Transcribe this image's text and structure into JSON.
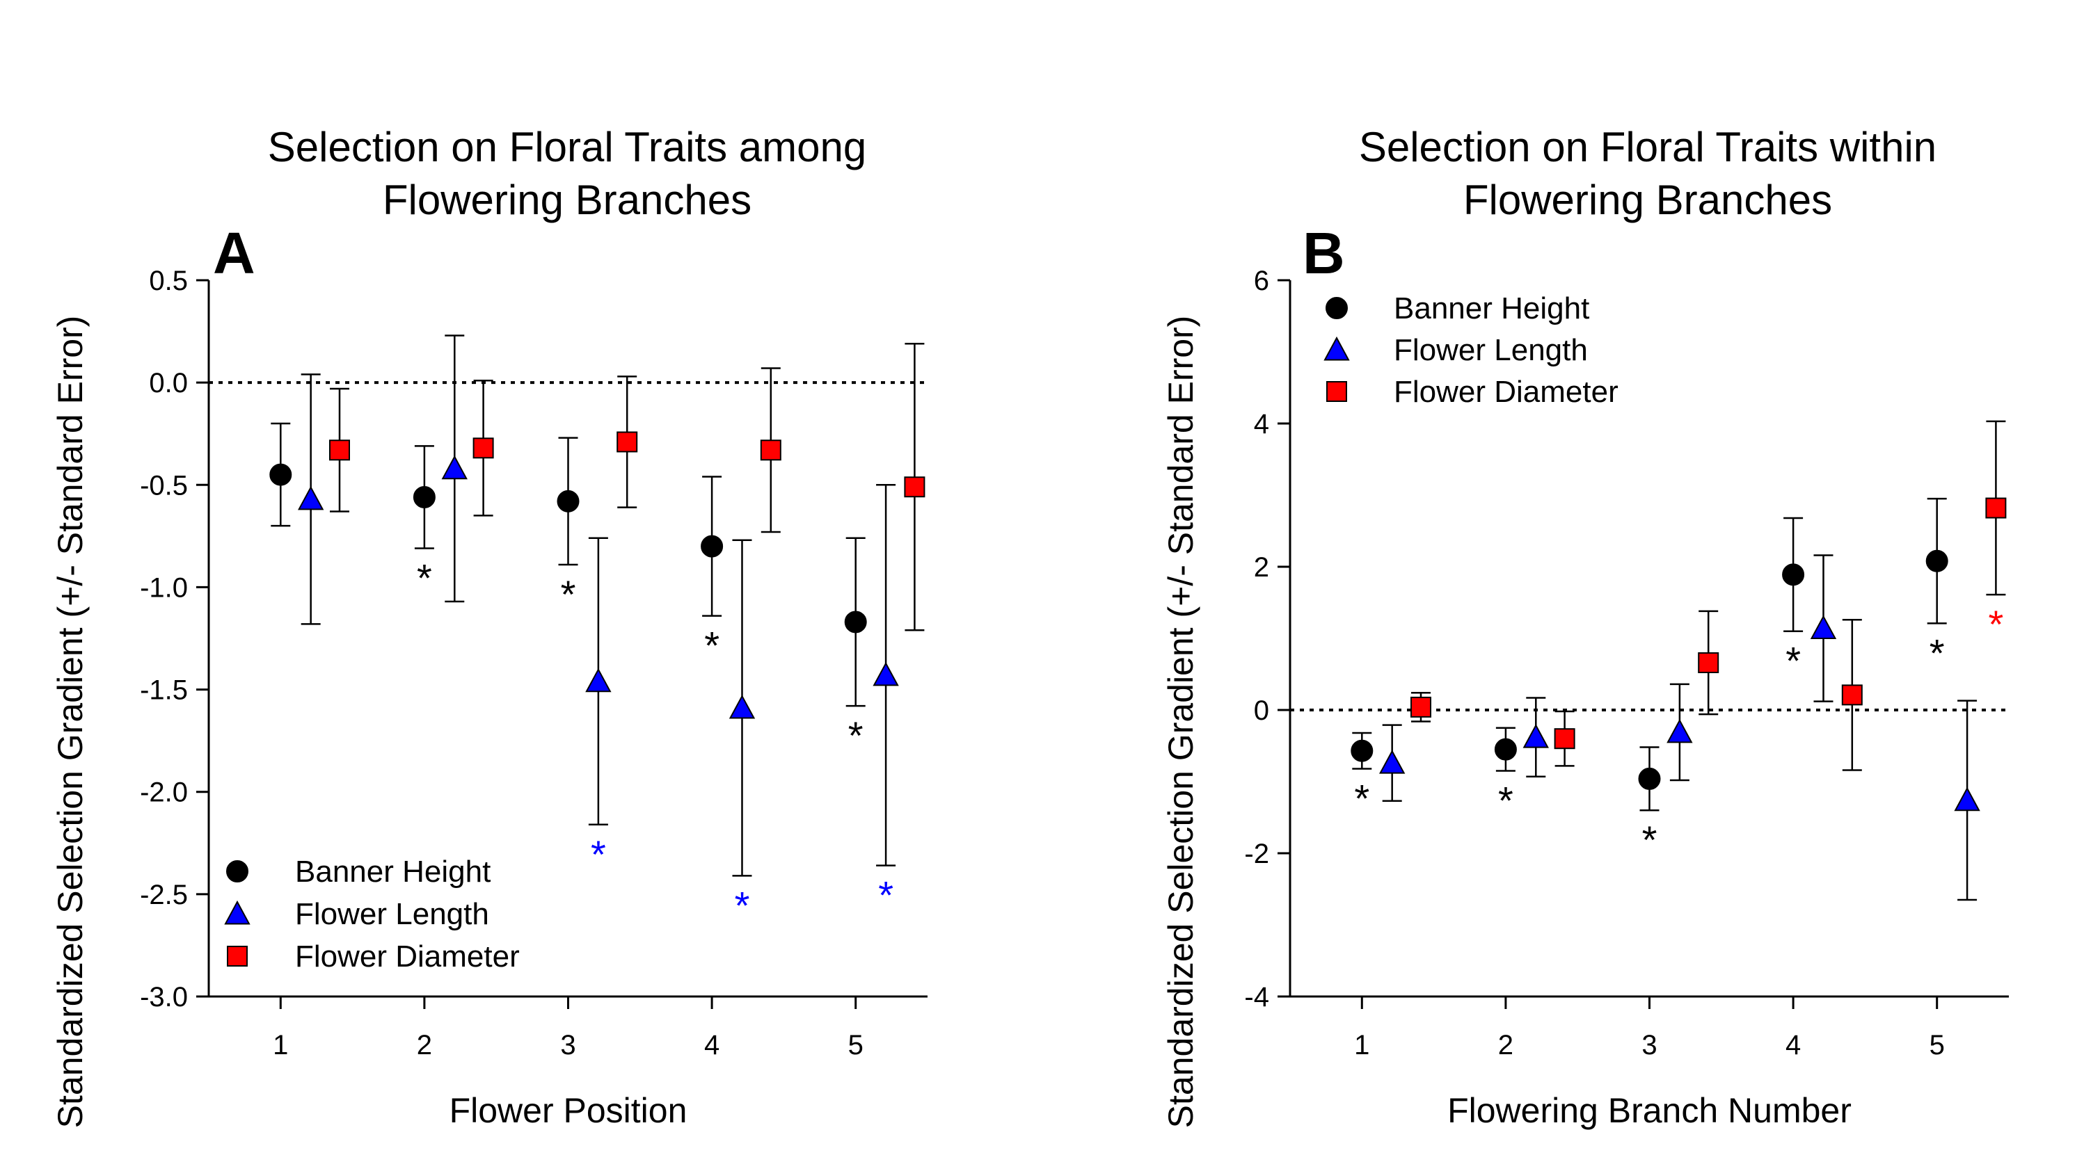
{
  "chart_data": [
    {
      "type": "scatter",
      "panel": "A",
      "title": [
        "Selection on Floral Traits among",
        "Flowering Branches"
      ],
      "xlabel": "Flower Position",
      "ylabel": "Standardized Selection Gradient (+/- Standard Error)",
      "x_ticks": [
        "1",
        "2",
        "3",
        "4",
        "5"
      ],
      "y_ticks": [
        "0.5",
        "0.0",
        "-0.5",
        "-1.0",
        "-1.5",
        "-2.0",
        "-2.5",
        "-3.0"
      ],
      "ylim": [
        -3.0,
        0.5
      ],
      "reference_line": 0,
      "legend_position": "bottom-left",
      "series": [
        {
          "name": "Banner Height",
          "marker": "circle",
          "color": "#000000",
          "values": [
            -0.45,
            -0.56,
            -0.58,
            -0.8,
            -1.17
          ],
          "errors": [
            0.25,
            0.25,
            0.31,
            0.34,
            0.41
          ],
          "significant": [
            false,
            true,
            true,
            true,
            true
          ]
        },
        {
          "name": "Flower Length",
          "marker": "triangle",
          "color": "#0000ff",
          "values": [
            -0.57,
            -0.42,
            -1.46,
            -1.59,
            -1.43
          ],
          "errors": [
            0.61,
            0.65,
            0.7,
            0.82,
            0.93
          ],
          "significant": [
            false,
            false,
            true,
            true,
            true
          ]
        },
        {
          "name": "Flower Diameter",
          "marker": "square",
          "color": "#ff0000",
          "values": [
            -0.33,
            -0.32,
            -0.29,
            -0.33,
            -0.51
          ],
          "errors": [
            0.3,
            0.33,
            0.32,
            0.4,
            0.7
          ],
          "significant": [
            false,
            false,
            false,
            false,
            false
          ]
        }
      ]
    },
    {
      "type": "scatter",
      "panel": "B",
      "title": [
        "Selection on Floral Traits within",
        "Flowering Branches"
      ],
      "xlabel": "Flowering Branch Number",
      "ylabel": "Standardized Selection Gradient (+/- Standard Error)",
      "x_ticks": [
        "1",
        "2",
        "3",
        "4",
        "5"
      ],
      "y_ticks": [
        "6",
        "4",
        "2",
        "0",
        "-2",
        "-4"
      ],
      "ylim": [
        -4,
        6
      ],
      "reference_line": 0,
      "legend_position": "top-left",
      "series": [
        {
          "name": "Banner Height",
          "marker": "circle",
          "color": "#000000",
          "values": [
            -0.57,
            -0.55,
            -0.96,
            1.89,
            2.08
          ],
          "errors": [
            0.25,
            0.3,
            0.44,
            0.79,
            0.87
          ],
          "significant": [
            true,
            true,
            true,
            true,
            true
          ]
        },
        {
          "name": "Flower Length",
          "marker": "triangle",
          "color": "#0000ff",
          "values": [
            -0.74,
            -0.38,
            -0.31,
            1.14,
            -1.26
          ],
          "errors": [
            0.53,
            0.55,
            0.67,
            1.02,
            1.39
          ],
          "significant": [
            false,
            false,
            false,
            false,
            false
          ]
        },
        {
          "name": "Flower Diameter",
          "marker": "square",
          "color": "#ff0000",
          "values": [
            0.04,
            -0.4,
            0.66,
            0.21,
            2.82
          ],
          "errors": [
            0.2,
            0.38,
            0.72,
            1.05,
            1.21
          ],
          "significant": [
            false,
            false,
            false,
            false,
            true
          ]
        }
      ]
    }
  ]
}
